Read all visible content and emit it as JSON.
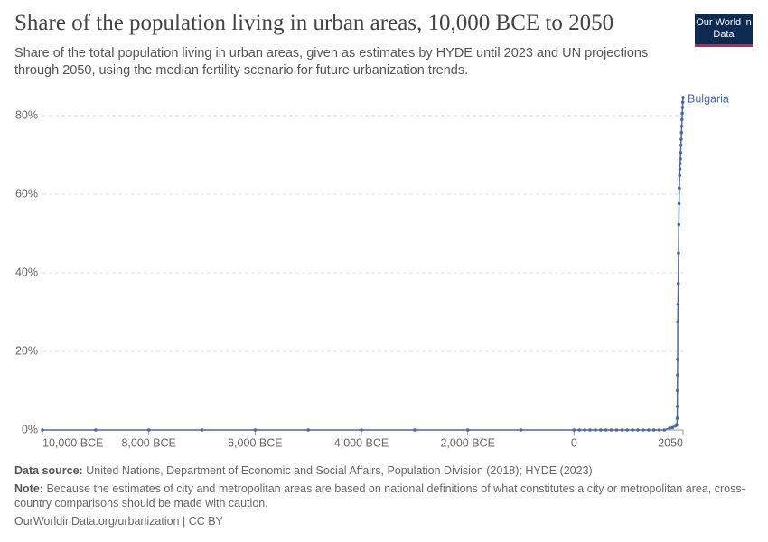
{
  "chart_data": {
    "type": "line",
    "title": "Share of the population living in urban areas, 10,000 BCE to 2050",
    "subtitle": "Share of the total population living in urban areas, given as estimates by HYDE until 2023 and UN projections through 2050, using the median fertility scenario for future urbanization trends.",
    "logo": "Our World in Data",
    "source_label": "Data source:",
    "source": "United Nations, Department of Economic and Social Affairs, Population Division (2018); HYDE (2023)",
    "note_label": "Note:",
    "note": "Because the estimates of city and metropolitan areas are based on national definitions of what constitutes a city or metropolitan area, cross-country comparisons should be made with caution.",
    "footer": "OurWorldinData.org/urbanization | CC BY",
    "x": [
      -10000,
      -9000,
      -8000,
      -7000,
      -6000,
      -5000,
      -4000,
      -3000,
      -2000,
      -1000,
      0,
      100,
      200,
      300,
      400,
      500,
      600,
      700,
      800,
      900,
      1000,
      1100,
      1200,
      1300,
      1400,
      1500,
      1600,
      1700,
      1800,
      1850,
      1900,
      1910,
      1920,
      1930,
      1940,
      1942,
      1944,
      1946,
      1948,
      1950,
      1955,
      1960,
      1965,
      1970,
      1975,
      1980,
      1985,
      1990,
      1995,
      2000,
      2005,
      2010,
      2015,
      2020,
      2025,
      2030,
      2035,
      2040,
      2045,
      2050
    ],
    "series": [
      {
        "name": "Bulgaria",
        "color": "#4c6a9c",
        "values": [
          0,
          0,
          0,
          0,
          0,
          0,
          0,
          0,
          0,
          0,
          0,
          0,
          0,
          0,
          0,
          0,
          0,
          0,
          0,
          0,
          0,
          0,
          0,
          0,
          0,
          0,
          0,
          0,
          0.5,
          0.6,
          1,
          1.1,
          1.2,
          1.3,
          3,
          6,
          10,
          14,
          18,
          27.5,
          32,
          37.3,
          45,
          52.3,
          57.6,
          61.5,
          64.7,
          66.4,
          67.8,
          69,
          70.6,
          72.5,
          74,
          75.7,
          77.3,
          79,
          80.6,
          82.1,
          83.4,
          84.6
        ]
      }
    ],
    "xlim": [
      -10000,
      2050
    ],
    "xticks": [
      {
        "value": -10000,
        "label": "10,000 BCE"
      },
      {
        "value": -8000,
        "label": "8,000 BCE"
      },
      {
        "value": -6000,
        "label": "6,000 BCE"
      },
      {
        "value": -4000,
        "label": "4,000 BCE"
      },
      {
        "value": -2000,
        "label": "2,000 BCE"
      },
      0,
      2050
    ],
    "ylim": [
      0,
      80
    ],
    "yticks": [
      {
        "value": 0,
        "label": "0%"
      },
      {
        "value": 20,
        "label": "20%"
      },
      {
        "value": 40,
        "label": "40%"
      },
      {
        "value": 60,
        "label": "60%"
      },
      {
        "value": 80,
        "label": "80%"
      }
    ],
    "grid": true
  }
}
